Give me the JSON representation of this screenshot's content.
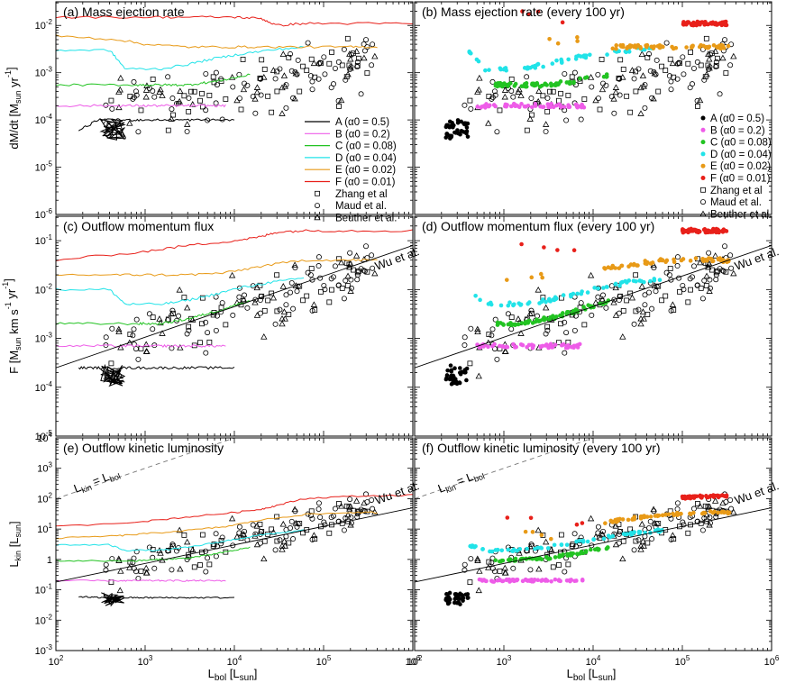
{
  "figure": {
    "xlabel": "L_bol [L_sun]",
    "x_ticks": [
      "10^2",
      "10^3",
      "10^4",
      "10^5",
      "10^6"
    ],
    "panels": [
      {
        "id": "a",
        "title": "(a) Mass ejection rate",
        "row": 0,
        "col": 0
      },
      {
        "id": "b",
        "title": "(b) Mass ejection rate (every 100 yr)",
        "row": 0,
        "col": 1
      },
      {
        "id": "c",
        "title": "(c) Outflow momentum flux",
        "row": 1,
        "col": 0
      },
      {
        "id": "d",
        "title": "(d) Outflow momentum flux (every 100 yr)",
        "row": 1,
        "col": 1
      },
      {
        "id": "e",
        "title": "(e) Outflow kinetic luminosity",
        "row": 2,
        "col": 0
      },
      {
        "id": "f",
        "title": "(f) Outflow kinetic luminosity (every 100 yr)",
        "row": 2,
        "col": 1
      }
    ],
    "rows": [
      {
        "ylabel": "dM/dt [M_sun yr^-1]",
        "ylim": [
          -6,
          -1.5
        ],
        "ticks": [
          "10^-2",
          "10^-3",
          "10^-4",
          "10^-5",
          "10^-6"
        ]
      },
      {
        "ylabel": "F [M_sun km s^-1 yr^-1]",
        "ylim": [
          -5,
          -0.5
        ],
        "ticks": [
          "10^-1",
          "10^-2",
          "10^-3",
          "10^-4",
          "10^-5"
        ]
      },
      {
        "ylabel": "L_kin [L_sun]",
        "ylim": [
          -3,
          4
        ],
        "ticks": [
          "10^4",
          "10^3",
          "10^2",
          "10^1",
          "1",
          "10^-1",
          "10^-2",
          "10^-3"
        ]
      }
    ],
    "annotations": {
      "wu": "Wu et al.",
      "lkin_eq": "L_kin = L_bol"
    }
  },
  "legend_lines": [
    {
      "label": "A (α0 = 0.5)",
      "color": "#000000"
    },
    {
      "label": "B (α0 = 0.2)",
      "color": "#ee5ce8"
    },
    {
      "label": "C (α0 = 0.08)",
      "color": "#22c322"
    },
    {
      "label": "D (α0 = 0.04)",
      "color": "#21e3e8"
    },
    {
      "label": "E (α0 = 0.02)",
      "color": "#e89a17"
    },
    {
      "label": "F (α0 = 0.01)",
      "color": "#e8201a"
    }
  ],
  "legend_obs": [
    {
      "label": "Zhang et al",
      "marker": "square"
    },
    {
      "label": "Maud et al.",
      "marker": "circle"
    },
    {
      "label": "Beuther et al.",
      "marker": "triangle"
    }
  ],
  "chart_data": {
    "type": "scatter",
    "x_scale": "log",
    "xlim": [
      100,
      1000000
    ],
    "models": [
      {
        "name": "A (α0 = 0.5)",
        "color": "#000000",
        "lbol": [
          180,
          300,
          550,
          1000,
          2000,
          4000,
          10000
        ],
        "mdot": [
          6e-05,
          0.0001,
          0.0001,
          0.0001,
          0.0001,
          0.0001,
          0.0001
        ],
        "flux": [
          0.00025,
          0.00025,
          0.00025,
          0.00025,
          0.00025,
          0.00025,
          0.00025
        ],
        "lkin": [
          0.06,
          0.055,
          0.055,
          0.055,
          0.055,
          0.055,
          0.055
        ]
      },
      {
        "name": "B (α0 = 0.2)",
        "color": "#ee5ce8",
        "lbol": [
          100,
          500,
          1000,
          2000,
          4000,
          8000
        ],
        "mdot": [
          0.0002,
          0.0002,
          0.0002,
          0.0002,
          0.0002,
          0.0002
        ],
        "flux": [
          0.0007,
          0.0007,
          0.0007,
          0.0007,
          0.0007,
          0.0007
        ],
        "lkin": [
          0.2,
          0.2,
          0.2,
          0.2,
          0.2,
          0.2
        ]
      },
      {
        "name": "C (α0 = 0.08)",
        "color": "#22c322",
        "lbol": [
          100,
          800,
          1500,
          3000,
          6000,
          15000
        ],
        "mdot": [
          0.00055,
          0.00055,
          0.00055,
          0.00055,
          0.00065,
          0.0009
        ],
        "flux": [
          0.002,
          0.002,
          0.002,
          0.0025,
          0.0035,
          0.006
        ],
        "lkin": [
          0.9,
          0.9,
          1.0,
          1.1,
          1.5,
          2.5
        ]
      },
      {
        "name": "D (α0 = 0.04)",
        "color": "#21e3e8",
        "lbol": [
          100,
          400,
          600,
          1500,
          3000,
          6000,
          12000,
          25000,
          60000
        ],
        "mdot": [
          0.003,
          0.003,
          0.0012,
          0.0012,
          0.0015,
          0.002,
          0.0025,
          0.003,
          0.0035
        ],
        "flux": [
          0.01,
          0.01,
          0.005,
          0.005,
          0.006,
          0.008,
          0.011,
          0.014,
          0.017
        ],
        "lkin": [
          3.0,
          3.0,
          2.0,
          2.0,
          2.5,
          3.5,
          5.0,
          7.0,
          9.0
        ]
      },
      {
        "name": "E (α0 = 0.02)",
        "color": "#e89a17",
        "lbol": [
          100,
          500,
          1000,
          3000,
          8000,
          20000,
          60000,
          200000,
          400000
        ],
        "mdot": [
          0.006,
          0.005,
          0.004,
          0.0035,
          0.0035,
          0.0035,
          0.0035,
          0.0035,
          0.0035
        ],
        "flux": [
          0.02,
          0.02,
          0.02,
          0.02,
          0.022,
          0.03,
          0.04,
          0.04,
          0.04
        ],
        "lkin": [
          5.0,
          6.0,
          7.0,
          9.0,
          12,
          20,
          30,
          35,
          35
        ]
      },
      {
        "name": "F (α0 = 0.01)",
        "color": "#e8201a",
        "lbol": [
          100,
          1000,
          3000,
          10000,
          20000,
          30000,
          60000,
          200000,
          1000000
        ],
        "mdot": [
          0.015,
          0.015,
          0.015,
          0.015,
          0.014,
          0.01,
          0.011,
          0.011,
          0.011
        ],
        "flux": [
          0.04,
          0.06,
          0.08,
          0.1,
          0.12,
          0.15,
          0.16,
          0.16,
          0.16
        ],
        "lkin": [
          12,
          18,
          25,
          35,
          45,
          60,
          100,
          120,
          130
        ]
      }
    ],
    "wu_relation": {
      "name": "Wu et al.",
      "x": [
        100,
        1000000
      ],
      "flux": [
        0.00025,
        0.08
      ],
      "lkin": [
        0.18,
        50
      ]
    },
    "equality_line": {
      "name": "L_kin = L_bol",
      "x": [
        100,
        1000000
      ],
      "y": [
        100,
        1000000
      ]
    }
  }
}
